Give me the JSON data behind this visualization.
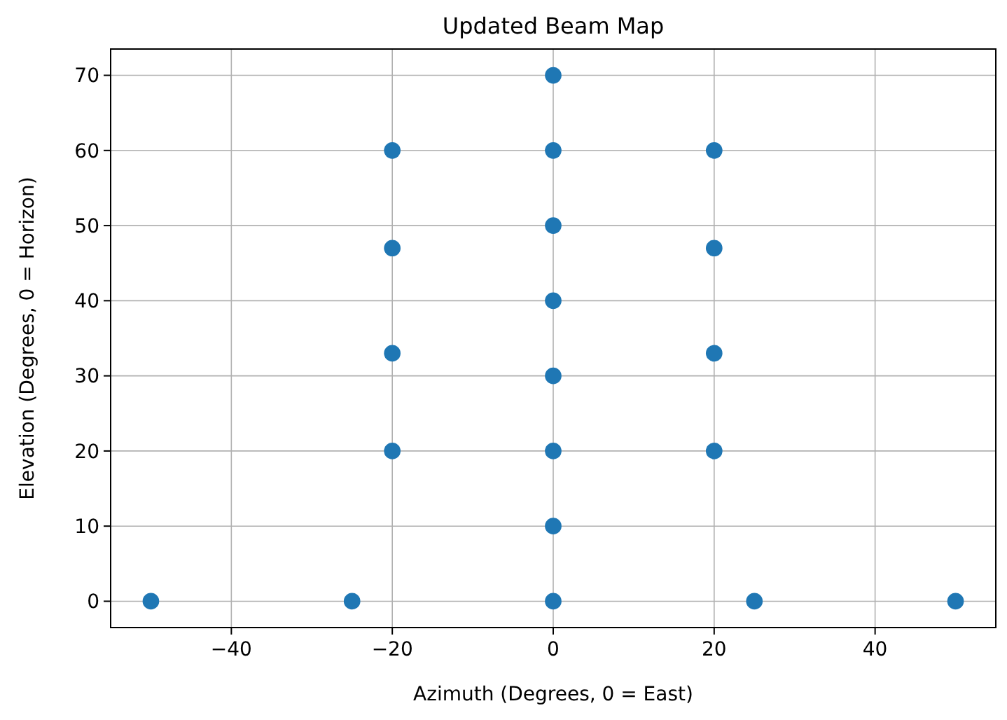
{
  "chart_data": {
    "type": "scatter",
    "title": "Updated Beam Map",
    "xlabel": "Azimuth (Degrees, 0 = East)",
    "ylabel": "Elevation (Degrees, 0 = Horizon)",
    "x": [
      -50,
      -25,
      0,
      25,
      50,
      0,
      -20,
      0,
      20,
      0,
      -20,
      20,
      0,
      -20,
      20,
      0,
      -20,
      0,
      20,
      0
    ],
    "values": [
      0,
      0,
      0,
      0,
      0,
      10,
      20,
      20,
      20,
      30,
      33,
      33,
      40,
      47,
      47,
      50,
      60,
      60,
      60,
      70
    ],
    "color": "#1f77b4",
    "marker": "circle",
    "grid": true,
    "xlim": [
      -55,
      55
    ],
    "xticks": [
      -40,
      -20,
      0,
      20,
      40
    ],
    "ylim": [
      -3.5,
      73.5
    ],
    "yticks": [
      0,
      10,
      20,
      30,
      40,
      50,
      60,
      70
    ]
  }
}
